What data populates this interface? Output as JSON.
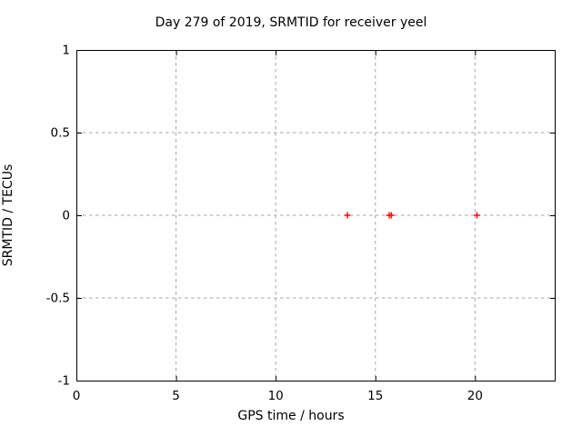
{
  "chart": {
    "title": "Day 279 of 2019, SRMTID for receiver yeel",
    "xlabel": "GPS time / hours",
    "ylabel": "SRMTID / TECUs"
  },
  "chart_data": {
    "type": "scatter",
    "title": "Day 279 of 2019, SRMTID for receiver yeel",
    "xlabel": "GPS time / hours",
    "ylabel": "SRMTID / TECUs",
    "xlim": [
      0,
      24
    ],
    "ylim": [
      -1,
      1
    ],
    "xticks": [
      0,
      5,
      10,
      15,
      20
    ],
    "xtick_labels": [
      "0",
      "5",
      "10",
      "15",
      "20"
    ],
    "yticks": [
      -1,
      -0.5,
      0,
      0.5,
      1
    ],
    "ytick_labels": [
      "-1",
      "-0.5",
      "0",
      "0.5",
      "1"
    ],
    "grid": true,
    "legend": false,
    "marker": "plus",
    "points": [
      {
        "x": 13.6,
        "y": 0
      },
      {
        "x": 15.7,
        "y": 0
      },
      {
        "x": 15.8,
        "y": 0
      },
      {
        "x": 20.1,
        "y": 0
      }
    ]
  },
  "colors": {
    "marker": "#ff0000",
    "grid": "#a6a6a6",
    "axis": "#000000",
    "background": "#ffffff"
  }
}
